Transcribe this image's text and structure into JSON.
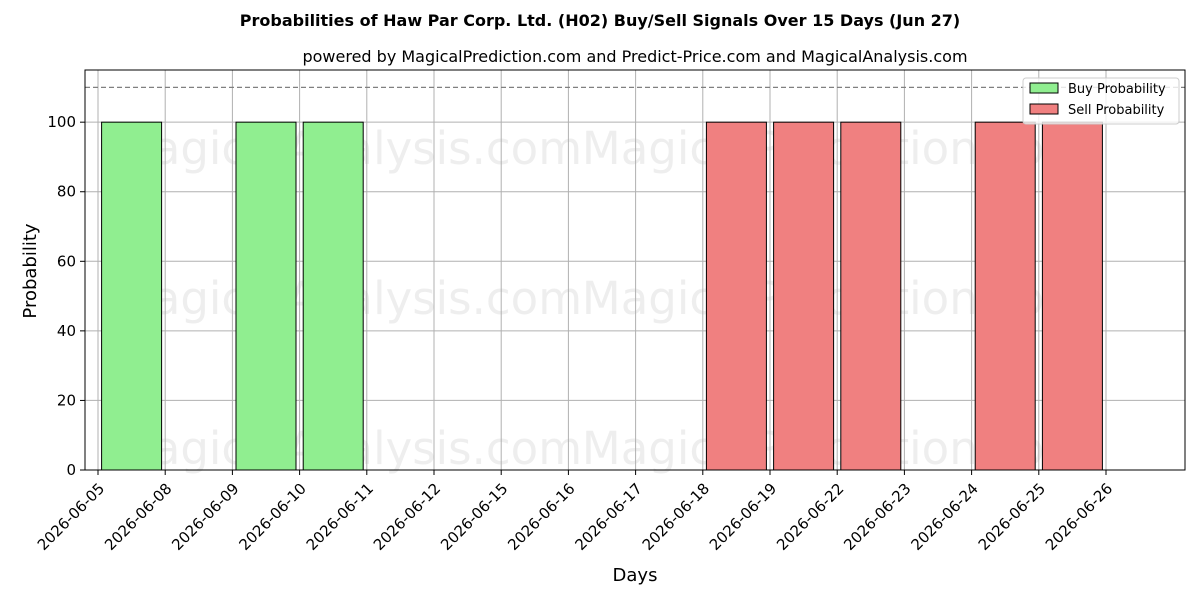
{
  "chart_data": {
    "type": "bar",
    "title": "Probabilities of Haw Par Corp. Ltd. (H02) Buy/Sell Signals Over 15 Days (Jun 27)",
    "subtitle": "powered by MagicalPrediction.com and Predict-Price.com and MagicalAnalysis.com",
    "xlabel": "Days",
    "ylabel": "Probability",
    "ylim": [
      0,
      115
    ],
    "yticks": [
      0,
      20,
      40,
      60,
      80,
      100
    ],
    "reference_line": 110,
    "grid": true,
    "legend_position": "top-right",
    "categories": [
      "2026-06-05",
      "2026-06-08",
      "2026-06-09",
      "2026-06-10",
      "2026-06-11",
      "2026-06-12",
      "2026-06-15",
      "2026-06-16",
      "2026-06-17",
      "2026-06-18",
      "2026-06-19",
      "2026-06-22",
      "2026-06-23",
      "2026-06-24",
      "2026-06-25",
      "2026-06-26"
    ],
    "series": [
      {
        "name": "Buy Probability",
        "color": "#90ee90",
        "bars": [
          {
            "date": "2026-06-08",
            "value": 100
          },
          {
            "date": "2026-06-10",
            "value": 100
          },
          {
            "date": "2026-06-11",
            "value": 100
          }
        ]
      },
      {
        "name": "Sell Probability",
        "color": "#f08080",
        "bars": [
          {
            "date": "2026-06-19",
            "value": 100
          },
          {
            "date": "2026-06-22",
            "value": 100
          },
          {
            "date": "2026-06-23",
            "value": 100
          },
          {
            "date": "2026-06-25",
            "value": 100
          },
          {
            "date": "2026-06-26",
            "value": 100
          }
        ]
      }
    ]
  },
  "watermarks": [
    "MagicalAnalysis.com",
    "MagicalPrediction.com"
  ]
}
